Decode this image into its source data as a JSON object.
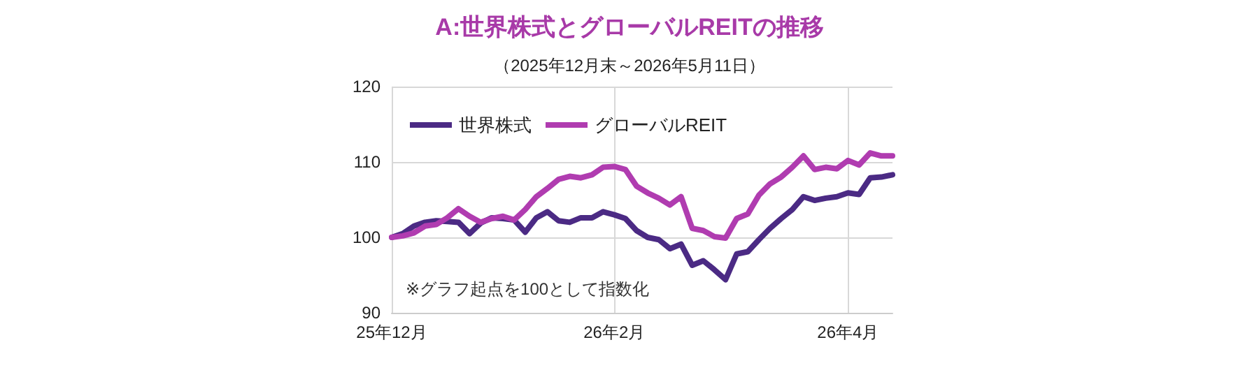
{
  "chart_data": {
    "type": "line",
    "title": "A:世界株式とグローバルREITの推移",
    "subtitle": "（2025年12月末～2026年5月11日）",
    "categories": [
      "25年12月",
      null,
      null,
      null,
      null,
      null,
      null,
      null,
      null,
      null,
      null,
      null,
      null,
      null,
      null,
      null,
      null,
      null,
      null,
      null,
      "26年2月",
      null,
      null,
      null,
      null,
      null,
      null,
      null,
      null,
      null,
      null,
      null,
      null,
      null,
      null,
      null,
      null,
      null,
      null,
      null,
      null,
      "26年4月",
      null,
      null,
      null,
      null
    ],
    "series": [
      {
        "name": "世界株式",
        "color": "#4b2a84",
        "values": [
          100,
          100.5,
          101.5,
          102,
          102.2,
          102.1,
          102,
          100.5,
          101.9,
          102.6,
          102.5,
          102.3,
          100.7,
          102.6,
          103.4,
          102.2,
          102,
          102.6,
          102.6,
          103.4,
          103,
          102.5,
          100.9,
          100,
          99.7,
          98.5,
          99.1,
          96.3,
          96.9,
          95.7,
          94.4,
          97.8,
          98.1,
          99.7,
          101.2,
          102.5,
          103.7,
          105.4,
          104.9,
          105.2,
          105.4,
          105.9,
          105.7,
          107.9,
          108,
          108.3
        ]
      },
      {
        "name": "グローバルREIT",
        "color": "#b03cb0",
        "values": [
          100,
          100.2,
          100.6,
          101.5,
          101.7,
          102.6,
          103.8,
          102.8,
          102,
          102.5,
          102.8,
          102.3,
          103.7,
          105.4,
          106.5,
          107.7,
          108.1,
          107.9,
          108.3,
          109.3,
          109.4,
          109,
          106.8,
          105.9,
          105.2,
          104.3,
          105.4,
          101.2,
          100.9,
          100.1,
          99.9,
          102.5,
          103.1,
          105.6,
          107.1,
          108,
          109.3,
          110.8,
          109,
          109.3,
          109.1,
          110.2,
          109.6,
          111.2,
          110.8,
          110.8
        ]
      }
    ],
    "ylim": [
      90,
      120
    ],
    "yticks": [
      90,
      100,
      110,
      120
    ],
    "grid": true,
    "legend": "top left",
    "marker": "none",
    "line_style": "solid",
    "annotations": [
      "※グラフ起点を100として指数化"
    ]
  }
}
